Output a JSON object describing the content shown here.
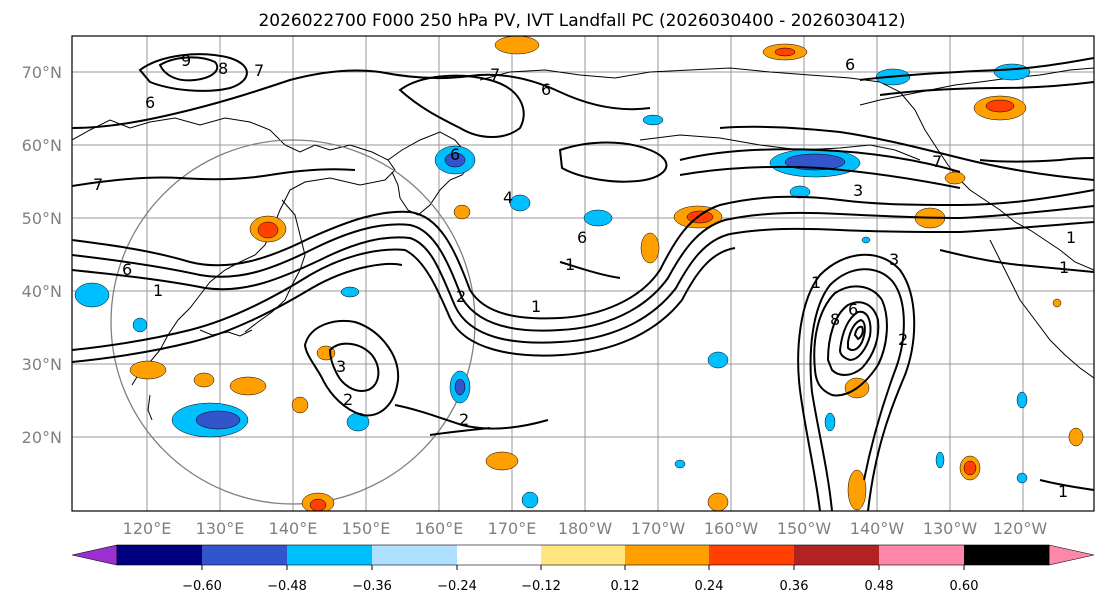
{
  "title": "2026022700 F000 250 hPa PV, IVT Landfall PC (2026030400 - 2026030412)",
  "latitude_labels": [
    "70°N",
    "60°N",
    "50°N",
    "40°N",
    "30°N",
    "20°N"
  ],
  "longitude_labels": [
    "120°E",
    "130°E",
    "140°E",
    "150°E",
    "160°E",
    "170°E",
    "180°W",
    "170°W",
    "160°W",
    "150°W",
    "140°W",
    "130°W",
    "120°W"
  ],
  "colorbar": {
    "tick_labels": [
      "−0.60",
      "−0.48",
      "−0.36",
      "−0.24",
      "−0.12",
      "0.12",
      "0.24",
      "0.36",
      "0.48",
      "0.60"
    ],
    "colors": [
      "#9b30d0",
      "#00007f",
      "#3355cc",
      "#00bfff",
      "#b0e0ff",
      "#ffffff",
      "#ffe680",
      "#ffa000",
      "#ff4000",
      "#b22222",
      "#ff88aa"
    ]
  },
  "contour_labels": [
    "9",
    "8",
    "7",
    "6",
    "6",
    "7",
    "6",
    "6",
    "4",
    "3",
    "7",
    "7",
    "6",
    "6",
    "1",
    "1",
    "1",
    "2",
    "3",
    "2",
    "3",
    "2",
    "1",
    "1",
    "2",
    "1",
    "8",
    "6",
    "1"
  ]
}
